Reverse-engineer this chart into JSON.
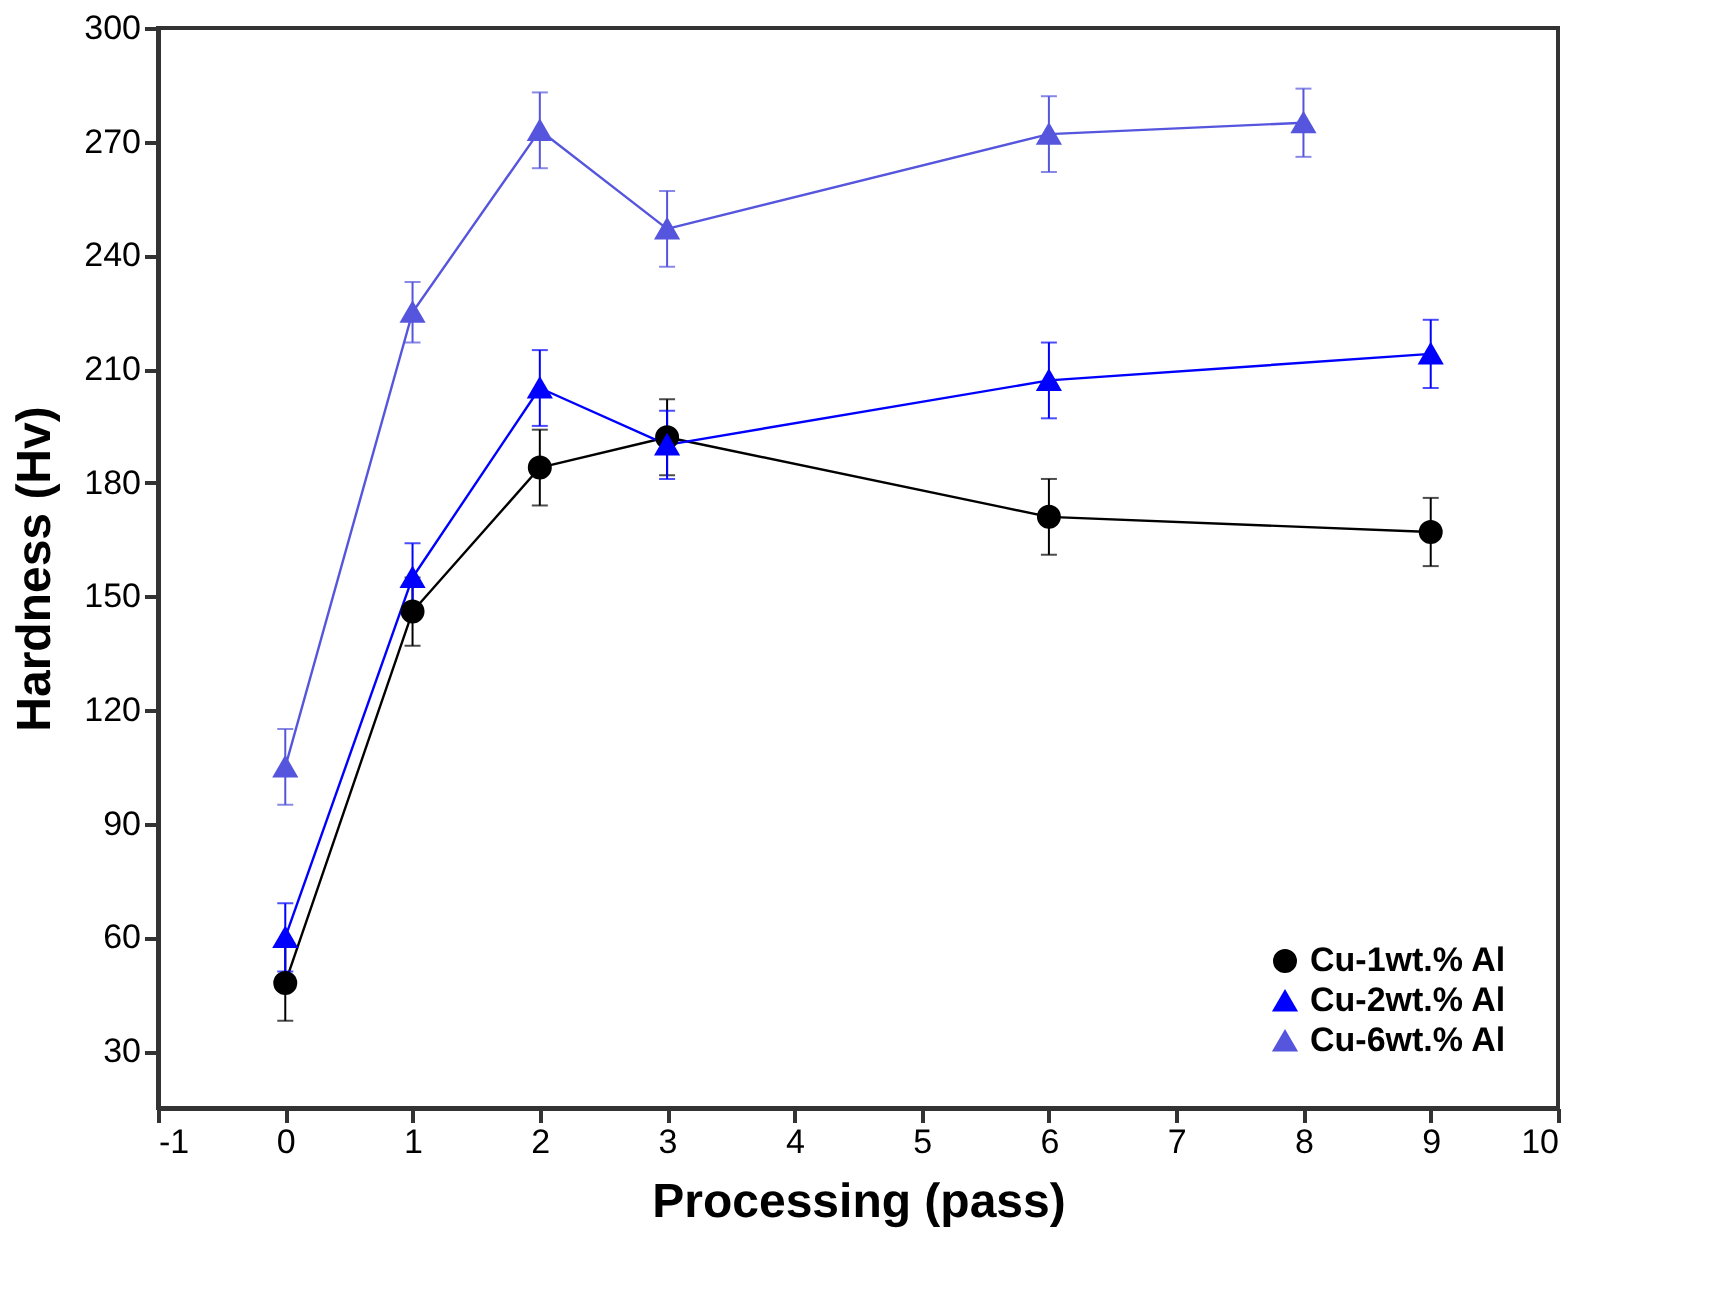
{
  "chart_data": {
    "type": "line",
    "xlabel": "Processing (pass)",
    "ylabel": "Hardness (Hv)",
    "xlim": [
      -1,
      10
    ],
    "xticks": [
      -1,
      0,
      1,
      2,
      3,
      4,
      5,
      6,
      7,
      8,
      9,
      10
    ],
    "ylim": [
      15,
      300
    ],
    "yticks": [
      30,
      60,
      90,
      120,
      150,
      180,
      210,
      240,
      270,
      300
    ],
    "grid": false,
    "legend": "bottom right",
    "series": [
      {
        "name": "Cu-1wt.% Al",
        "color": "#000000",
        "marker": "circle",
        "x": [
          0,
          1,
          2,
          3,
          6,
          9
        ],
        "values": [
          48,
          146,
          184,
          192,
          171,
          167
        ],
        "errors": [
          10,
          9,
          10,
          10,
          10,
          9
        ]
      },
      {
        "name": "Cu-2wt.% Al",
        "color": "#0000ff",
        "marker": "triangle",
        "x": [
          0,
          1,
          2,
          3,
          6,
          9
        ],
        "values": [
          60,
          155,
          205,
          190,
          207,
          214
        ],
        "errors": [
          9,
          9,
          10,
          9,
          10,
          9
        ]
      },
      {
        "name": "Cu-6wt.% Al",
        "color": "#5555dd",
        "marker": "triangle",
        "x": [
          0,
          1,
          2,
          3,
          6,
          8
        ],
        "values": [
          105,
          225,
          273,
          247,
          272,
          275
        ],
        "errors": [
          10,
          8,
          10,
          10,
          10,
          9
        ]
      }
    ]
  }
}
